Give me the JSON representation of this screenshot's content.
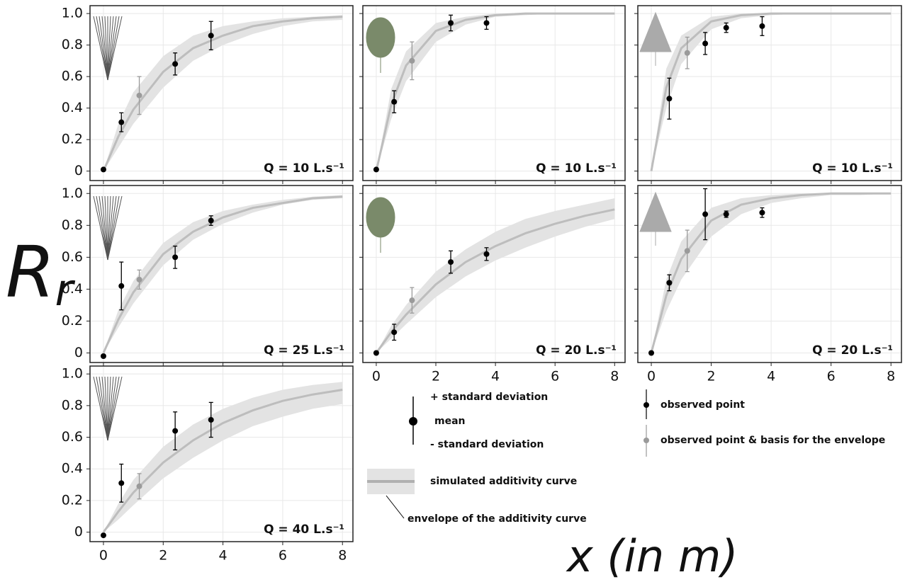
{
  "ylabel": {
    "main": "R",
    "sub": "r"
  },
  "xlabel": "x (in m)",
  "legend": {
    "plus_sd": "+ standard deviation",
    "mean": "mean",
    "minus_sd": "- standard deviation",
    "curve": "simulated additivity curve",
    "envelope": "envelope of the additivity curve",
    "observed": "observed point",
    "basis": "observed point & basis for the envelope"
  },
  "chart_data": [
    {
      "type": "scatter",
      "annotation": "Q = 10 L.s⁻¹",
      "xlim": [
        -0.45,
        8.35
      ],
      "ylim": [
        -0.06,
        1.05
      ],
      "xticks": [
        0,
        2,
        4,
        6,
        8
      ],
      "yticks": [
        0,
        0.2,
        0.4,
        0.6,
        0.8,
        {
          "value": 1,
          "label": "1.0"
        }
      ],
      "grid": true,
      "show_xticklabels": false,
      "show_yticklabels": true,
      "plant": "grass",
      "curve": {
        "color": "#bdbdbd",
        "band_color": "#e3e3e3",
        "x": [
          0,
          0.5,
          1,
          2,
          3,
          4,
          5,
          6,
          7,
          8
        ],
        "values": [
          0,
          0.22,
          0.39,
          0.63,
          0.78,
          0.86,
          0.92,
          0.95,
          0.97,
          0.98
        ],
        "lower": [
          0,
          0.15,
          0.3,
          0.53,
          0.7,
          0.8,
          0.87,
          0.92,
          0.95,
          0.96
        ],
        "upper": [
          0,
          0.3,
          0.5,
          0.73,
          0.86,
          0.92,
          0.95,
          0.97,
          0.98,
          0.99
        ]
      },
      "observed": {
        "color": "#000000",
        "x": [
          0,
          0.6,
          2.4,
          3.6
        ],
        "values": [
          0.01,
          0.31,
          0.68,
          0.86
        ],
        "errors": [
          0,
          0.06,
          0.07,
          0.09
        ]
      },
      "basis": {
        "color": "#9a9a9a",
        "x": [
          1.2
        ],
        "values": [
          0.48
        ],
        "errors": [
          0.12
        ]
      }
    },
    {
      "type": "scatter",
      "annotation": "Q = 10 L.s⁻¹",
      "xlim": [
        -0.45,
        8.35
      ],
      "ylim": [
        -0.06,
        1.05
      ],
      "xticks": [
        0,
        2,
        4,
        6,
        8
      ],
      "yticks": [
        0,
        0.2,
        0.4,
        0.6,
        0.8,
        {
          "value": 1,
          "label": "1.0"
        }
      ],
      "grid": true,
      "show_xticklabels": false,
      "show_yticklabels": false,
      "plant": "bush",
      "curve": {
        "color": "#bdbdbd",
        "band_color": "#e3e3e3",
        "x": [
          0,
          0.5,
          1,
          2,
          3,
          4,
          5,
          6,
          7,
          8
        ],
        "values": [
          0,
          0.42,
          0.67,
          0.89,
          0.96,
          0.99,
          1,
          1,
          1,
          1
        ],
        "lower": [
          0,
          0.33,
          0.57,
          0.82,
          0.93,
          0.98,
          0.99,
          1,
          1,
          1
        ],
        "upper": [
          0,
          0.52,
          0.76,
          0.94,
          0.98,
          1,
          1,
          1,
          1,
          1
        ]
      },
      "observed": {
        "color": "#000000",
        "x": [
          0,
          0.6,
          2.5,
          3.7
        ],
        "values": [
          0.01,
          0.44,
          0.94,
          0.94
        ],
        "errors": [
          0,
          0.07,
          0.05,
          0.04
        ]
      },
      "basis": {
        "color": "#9a9a9a",
        "x": [
          1.2
        ],
        "values": [
          0.7
        ],
        "errors": [
          0.12
        ]
      }
    },
    {
      "type": "scatter",
      "annotation": "Q = 10 L.s⁻¹",
      "xlim": [
        -0.45,
        8.35
      ],
      "ylim": [
        -0.06,
        1.05
      ],
      "xticks": [
        0,
        2,
        4,
        6,
        8
      ],
      "yticks": [
        0,
        0.2,
        0.4,
        0.6,
        0.8,
        {
          "value": 1,
          "label": "1.0"
        }
      ],
      "grid": true,
      "show_xticklabels": false,
      "show_yticklabels": false,
      "plant": "fern",
      "curve": {
        "color": "#bdbdbd",
        "band_color": "#e3e3e3",
        "x": [
          0,
          0.5,
          1,
          2,
          3,
          4,
          5,
          6,
          7,
          8
        ],
        "values": [
          0,
          0.53,
          0.78,
          0.95,
          0.99,
          1,
          1,
          1,
          1,
          1
        ],
        "lower": [
          0,
          0.4,
          0.68,
          0.9,
          0.97,
          0.99,
          1,
          1,
          1,
          1
        ],
        "upper": [
          0,
          0.65,
          0.86,
          0.98,
          1,
          1,
          1,
          1,
          1,
          1
        ]
      },
      "observed": {
        "color": "#000000",
        "x": [
          0.6,
          1.8,
          2.5,
          3.7
        ],
        "values": [
          0.46,
          0.81,
          0.91,
          0.92
        ],
        "errors": [
          0.13,
          0.07,
          0.03,
          0.06
        ]
      },
      "basis": {
        "color": "#9a9a9a",
        "x": [
          1.2
        ],
        "values": [
          0.75
        ],
        "errors": [
          0.1
        ]
      }
    },
    {
      "type": "scatter",
      "annotation": "Q = 25 L.s⁻¹",
      "xlim": [
        -0.45,
        8.35
      ],
      "ylim": [
        -0.06,
        1.05
      ],
      "xticks": [
        0,
        2,
        4,
        6,
        8
      ],
      "yticks": [
        0,
        0.2,
        0.4,
        0.6,
        0.8,
        {
          "value": 1,
          "label": "1.0"
        }
      ],
      "grid": true,
      "show_xticklabels": false,
      "show_yticklabels": true,
      "plant": "grass",
      "curve": {
        "color": "#bdbdbd",
        "band_color": "#e3e3e3",
        "x": [
          0,
          0.5,
          1,
          2,
          3,
          4,
          5,
          6,
          7,
          8
        ],
        "values": [
          0,
          0.21,
          0.38,
          0.62,
          0.76,
          0.85,
          0.91,
          0.94,
          0.97,
          0.98
        ],
        "lower": [
          0,
          0.16,
          0.31,
          0.55,
          0.71,
          0.81,
          0.88,
          0.93,
          0.96,
          0.97
        ],
        "upper": [
          0,
          0.27,
          0.45,
          0.69,
          0.82,
          0.89,
          0.93,
          0.96,
          0.98,
          0.99
        ]
      },
      "observed": {
        "color": "#000000",
        "x": [
          0,
          0.6,
          2.4,
          3.6
        ],
        "values": [
          -0.02,
          0.42,
          0.6,
          0.83
        ],
        "errors": [
          0,
          0.15,
          0.07,
          0.03
        ]
      },
      "basis": {
        "color": "#9a9a9a",
        "x": [
          1.2
        ],
        "values": [
          0.46
        ],
        "errors": [
          0.06
        ]
      }
    },
    {
      "type": "scatter",
      "annotation": "Q = 20 L.s⁻¹",
      "xlim": [
        -0.45,
        8.35
      ],
      "ylim": [
        -0.06,
        1.05
      ],
      "xticks": [
        0,
        2,
        4,
        6,
        8
      ],
      "yticks": [
        0,
        0.2,
        0.4,
        0.6,
        0.8,
        {
          "value": 1,
          "label": "1.0"
        }
      ],
      "grid": true,
      "show_xticklabels": true,
      "show_yticklabels": false,
      "plant": "bush",
      "curve": {
        "color": "#bdbdbd",
        "band_color": "#e3e3e3",
        "x": [
          0,
          0.5,
          1,
          2,
          3,
          4,
          5,
          6,
          7,
          8
        ],
        "values": [
          0,
          0.13,
          0.24,
          0.43,
          0.57,
          0.67,
          0.75,
          0.81,
          0.86,
          0.9
        ],
        "lower": [
          0,
          0.09,
          0.18,
          0.35,
          0.48,
          0.58,
          0.66,
          0.73,
          0.79,
          0.84
        ],
        "upper": [
          0,
          0.17,
          0.3,
          0.51,
          0.65,
          0.76,
          0.84,
          0.89,
          0.93,
          0.97
        ]
      },
      "observed": {
        "color": "#000000",
        "x": [
          0,
          0.6,
          2.5,
          3.7
        ],
        "values": [
          0,
          0.13,
          0.57,
          0.62
        ],
        "errors": [
          0,
          0.05,
          0.07,
          0.04
        ]
      },
      "basis": {
        "color": "#9a9a9a",
        "x": [
          1.2
        ],
        "values": [
          0.33
        ],
        "errors": [
          0.08
        ]
      }
    },
    {
      "type": "scatter",
      "annotation": "Q = 20 L.s⁻¹",
      "xlim": [
        -0.45,
        8.35
      ],
      "ylim": [
        -0.06,
        1.05
      ],
      "xticks": [
        0,
        2,
        4,
        6,
        8
      ],
      "yticks": [
        0,
        0.2,
        0.4,
        0.6,
        0.8,
        {
          "value": 1,
          "label": "1.0"
        }
      ],
      "grid": true,
      "show_xticklabels": true,
      "show_yticklabels": false,
      "plant": "fern",
      "curve": {
        "color": "#bdbdbd",
        "band_color": "#e3e3e3",
        "x": [
          0,
          0.5,
          1,
          2,
          3,
          4,
          5,
          6,
          7,
          8
        ],
        "values": [
          0,
          0.36,
          0.59,
          0.83,
          0.93,
          0.97,
          0.99,
          1,
          1,
          1
        ],
        "lower": [
          0,
          0.26,
          0.46,
          0.73,
          0.87,
          0.94,
          0.97,
          0.99,
          0.99,
          1
        ],
        "upper": [
          0,
          0.46,
          0.7,
          0.91,
          0.97,
          0.99,
          1,
          1,
          1,
          1
        ]
      },
      "observed": {
        "color": "#000000",
        "x": [
          0,
          0.6,
          1.8,
          2.5,
          3.7
        ],
        "values": [
          0,
          0.44,
          0.87,
          0.87,
          0.88
        ],
        "errors": [
          0,
          0.05,
          0.16,
          0.02,
          0.03
        ]
      },
      "basis": {
        "color": "#9a9a9a",
        "x": [
          1.2
        ],
        "values": [
          0.64
        ],
        "errors": [
          0.13
        ]
      }
    },
    {
      "type": "scatter",
      "annotation": "Q = 40 L.s⁻¹",
      "xlim": [
        -0.45,
        8.35
      ],
      "ylim": [
        -0.06,
        1.05
      ],
      "xticks": [
        0,
        2,
        4,
        6,
        8
      ],
      "yticks": [
        0,
        0.2,
        0.4,
        0.6,
        0.8,
        {
          "value": 1,
          "label": "1.0"
        }
      ],
      "grid": true,
      "show_xticklabels": true,
      "show_yticklabels": true,
      "plant": "grass",
      "curve": {
        "color": "#bdbdbd",
        "band_color": "#e3e3e3",
        "x": [
          0,
          0.5,
          1,
          2,
          3,
          4,
          5,
          6,
          7,
          8
        ],
        "values": [
          0,
          0.13,
          0.25,
          0.44,
          0.58,
          0.69,
          0.77,
          0.83,
          0.87,
          0.9
        ],
        "lower": [
          0,
          0.08,
          0.17,
          0.34,
          0.47,
          0.58,
          0.67,
          0.73,
          0.78,
          0.81
        ],
        "upper": [
          0,
          0.18,
          0.33,
          0.54,
          0.68,
          0.78,
          0.85,
          0.9,
          0.93,
          0.95
        ]
      },
      "observed": {
        "color": "#000000",
        "x": [
          0,
          0.6,
          2.4,
          3.6
        ],
        "values": [
          -0.02,
          0.31,
          0.64,
          0.71
        ],
        "errors": [
          0,
          0.12,
          0.12,
          0.11
        ]
      },
      "basis": {
        "color": "#9a9a9a",
        "x": [
          1.2
        ],
        "values": [
          0.29
        ],
        "errors": [
          0.08
        ]
      }
    }
  ]
}
